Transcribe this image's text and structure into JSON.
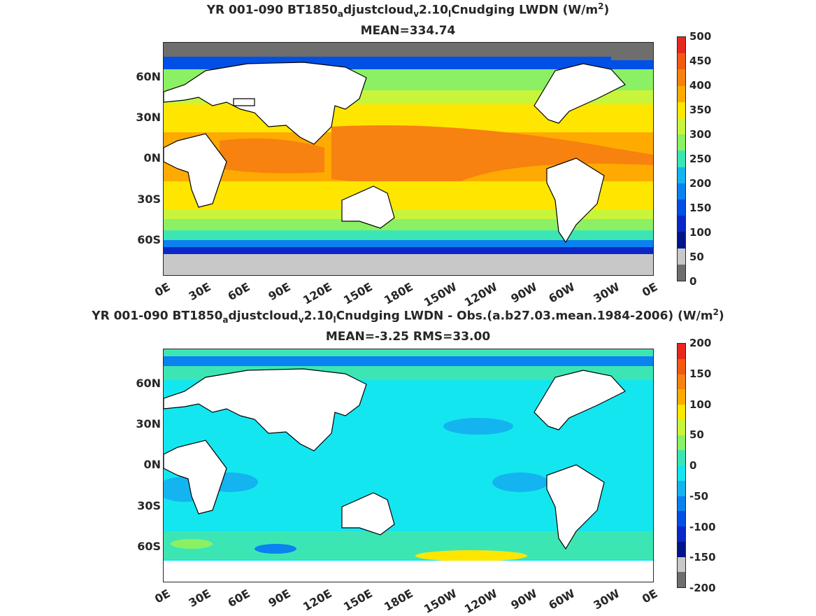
{
  "panel1": {
    "title_prefix": "YR 001-090 BT1850",
    "title_sub_a": "a",
    "title_mid": "djustcloud",
    "title_sub_v": "v",
    "title_mid2": "2.10",
    "title_sub_l": "l",
    "title_suffix": "Cnudging LWDN (W/m",
    "title_sup": "2",
    "title_close": ")",
    "stats": "MEAN=334.74",
    "colorbar_ticks": [
      "500",
      "450",
      "400",
      "350",
      "300",
      "250",
      "200",
      "150",
      "100",
      "50",
      "0"
    ]
  },
  "panel2": {
    "title_prefix": "YR 001-090 BT1850",
    "title_sub_a": "a",
    "title_mid": "djustcloud",
    "title_sub_v": "v",
    "title_mid2": "2.10",
    "title_sub_l": "l",
    "title_suffix": "Cnudging LWDN - Obs.(a.b27.03.mean.1984-2006) (W/m",
    "title_sup": "2",
    "title_close": ")",
    "stats": "MEAN=-3.25 RMS=33.00",
    "colorbar_ticks": [
      "200",
      "150",
      "100",
      "50",
      "0",
      "-50",
      "-100",
      "-150",
      "-200"
    ]
  },
  "axes": {
    "lat_ticks": [
      "60N",
      "30N",
      "0N",
      "30S",
      "60S"
    ],
    "lon_ticks": [
      "0E",
      "30E",
      "60E",
      "90E",
      "120E",
      "150E",
      "180E",
      "150W",
      "120W",
      "90W",
      "60W",
      "30W",
      "0E"
    ]
  },
  "colors": {
    "cbar1": [
      "#e8281e",
      "#f25a14",
      "#f7820f",
      "#ffaa00",
      "#ffe600",
      "#c8f53c",
      "#8cf064",
      "#3ce6b4",
      "#14b4f0",
      "#0a82f0",
      "#0050e6",
      "#0a28c8",
      "#00148c",
      "#c8c8c8",
      "#6e6e6e"
    ],
    "cbar2": [
      "#e8281e",
      "#f25a14",
      "#f7820f",
      "#ffaa00",
      "#ffe600",
      "#c8f53c",
      "#8cf064",
      "#3ce6b4",
      "#14e6f0",
      "#14b4f0",
      "#0a82f0",
      "#0050e6",
      "#0a28c8",
      "#00148c",
      "#c8c8c8",
      "#6e6e6e"
    ]
  }
}
